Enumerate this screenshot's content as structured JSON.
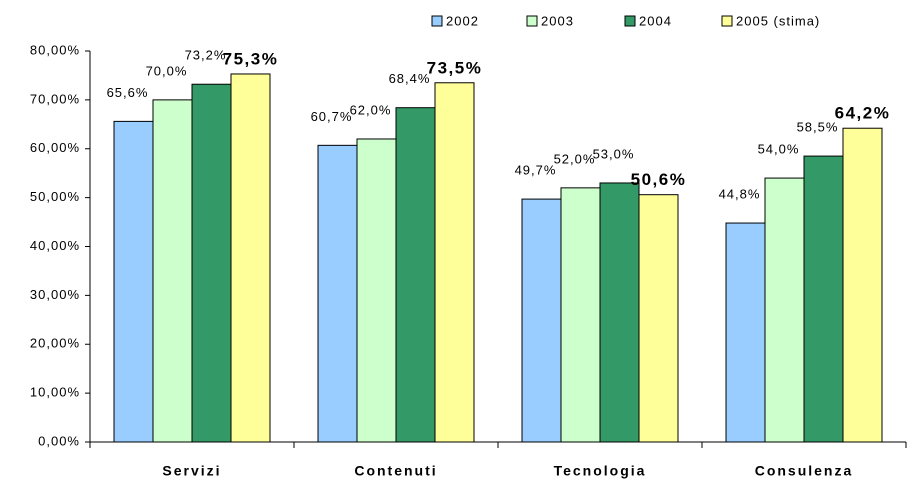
{
  "chart_data": {
    "type": "bar",
    "categories": [
      "Servizi",
      "Contenuti",
      "Tecnologia",
      "Consulenza"
    ],
    "series": [
      {
        "name": "2002",
        "color": "#99ccff",
        "values": [
          65.6,
          60.7,
          49.7,
          44.8
        ],
        "value_labels": [
          "65,6%",
          "60,7%",
          "49,7%",
          "44,8%"
        ]
      },
      {
        "name": "2003",
        "color": "#ccffcc",
        "values": [
          70.0,
          62.0,
          52.0,
          54.0
        ],
        "value_labels": [
          "70,0%",
          "62,0%",
          "52,0%",
          "54,0%"
        ]
      },
      {
        "name": "2004",
        "color": "#339966",
        "values": [
          73.2,
          68.4,
          53.0,
          58.5
        ],
        "value_labels": [
          "73,2%",
          "68,4%",
          "53,0%",
          "58,5%"
        ]
      },
      {
        "name": "2005 (stima)",
        "color": "#ffff99",
        "values": [
          75.3,
          73.5,
          50.6,
          64.2
        ],
        "value_labels": [
          "75,3%",
          "73,5%",
          "50,6%",
          "64,2%"
        ]
      }
    ],
    "ylim": [
      0,
      80
    ],
    "yticks": [
      {
        "value": 0,
        "label": "0,00%"
      },
      {
        "value": 10,
        "label": "10,00%"
      },
      {
        "value": 20,
        "label": "20,00%"
      },
      {
        "value": 30,
        "label": "30,00%"
      },
      {
        "value": 40,
        "label": "40,00%"
      },
      {
        "value": 50,
        "label": "50,00%"
      },
      {
        "value": 60,
        "label": "60,00%"
      },
      {
        "value": 70,
        "label": "70,00%"
      },
      {
        "value": 80,
        "label": "80,00%"
      }
    ],
    "legend": "top-right"
  }
}
